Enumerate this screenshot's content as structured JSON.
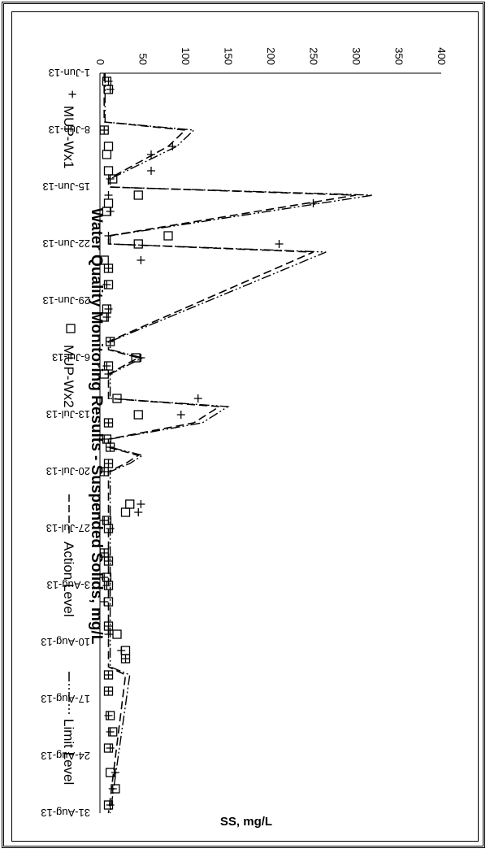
{
  "chart_data": {
    "type": "line",
    "title": "Water Quality Monitoring Results - Suspended Solids, mg/L",
    "ylabel": "SS, mg/L",
    "xlabel": "",
    "ylim": [
      0,
      400
    ],
    "yticks": [
      0,
      50,
      100,
      150,
      200,
      250,
      300,
      350,
      400
    ],
    "xlim": [
      "2013-06-01",
      "2013-08-31"
    ],
    "xticks": [
      "1-Jun-13",
      "8-Jun-13",
      "15-Jun-13",
      "22-Jun-13",
      "29-Jun-13",
      "6-Jul-13",
      "13-Jul-13",
      "20-Jul-13",
      "27-Jul-13",
      "3-Aug-13",
      "10-Aug-13",
      "17-Aug-13",
      "24-Aug-13",
      "31-Aug-13"
    ],
    "grid": false,
    "legend_position": "top",
    "series": [
      {
        "name": "MUP-Wx1",
        "marker": "plus",
        "x": [
          "2013-06-02",
          "2013-06-03",
          "2013-06-08",
          "2013-06-10",
          "2013-06-11",
          "2013-06-13",
          "2013-06-14",
          "2013-06-16",
          "2013-06-17",
          "2013-06-18",
          "2013-06-21",
          "2013-06-22",
          "2013-06-24",
          "2013-06-25",
          "2013-06-27",
          "2013-06-30",
          "2013-07-01",
          "2013-07-04",
          "2013-07-06",
          "2013-07-07",
          "2013-07-08",
          "2013-07-11",
          "2013-07-13",
          "2013-07-14",
          "2013-07-16",
          "2013-07-17",
          "2013-07-19",
          "2013-07-20",
          "2013-07-24",
          "2013-07-25",
          "2013-07-26",
          "2013-07-27",
          "2013-07-30",
          "2013-07-31",
          "2013-08-02",
          "2013-08-03",
          "2013-08-05",
          "2013-08-08",
          "2013-08-09",
          "2013-08-11",
          "2013-08-12",
          "2013-08-14",
          "2013-08-16",
          "2013-08-19",
          "2013-08-21",
          "2013-08-23",
          "2013-08-26",
          "2013-08-28",
          "2013-08-30"
        ],
        "values": [
          10,
          12,
          5,
          85,
          60,
          60,
          12,
          10,
          250,
          12,
          10,
          210,
          48,
          10,
          8,
          10,
          8,
          12,
          48,
          8,
          10,
          115,
          95,
          10,
          5,
          12,
          10,
          5,
          48,
          45,
          5,
          12,
          5,
          10,
          5,
          8,
          5,
          10,
          10,
          25,
          30,
          10,
          10,
          10,
          12,
          12,
          18,
          15,
          12
        ]
      },
      {
        "name": "MUP-Wx2",
        "marker": "square",
        "x": [
          "2013-06-02",
          "2013-06-03",
          "2013-06-08",
          "2013-06-10",
          "2013-06-11",
          "2013-06-13",
          "2013-06-14",
          "2013-06-16",
          "2013-06-17",
          "2013-06-18",
          "2013-06-21",
          "2013-06-22",
          "2013-06-24",
          "2013-06-25",
          "2013-06-27",
          "2013-06-30",
          "2013-07-01",
          "2013-07-04",
          "2013-07-06",
          "2013-07-07",
          "2013-07-08",
          "2013-07-11",
          "2013-07-13",
          "2013-07-14",
          "2013-07-16",
          "2013-07-17",
          "2013-07-19",
          "2013-07-20",
          "2013-07-24",
          "2013-07-25",
          "2013-07-26",
          "2013-07-27",
          "2013-07-30",
          "2013-07-31",
          "2013-08-02",
          "2013-08-03",
          "2013-08-05",
          "2013-08-08",
          "2013-08-09",
          "2013-08-11",
          "2013-08-12",
          "2013-08-14",
          "2013-08-16",
          "2013-08-19",
          "2013-08-21",
          "2013-08-23",
          "2013-08-26",
          "2013-08-28",
          "2013-08-30"
        ],
        "values": [
          8,
          10,
          5,
          10,
          8,
          10,
          15,
          45,
          10,
          8,
          80,
          45,
          5,
          10,
          10,
          8,
          5,
          12,
          42,
          10,
          5,
          20,
          45,
          10,
          8,
          12,
          10,
          5,
          35,
          30,
          8,
          10,
          5,
          10,
          8,
          10,
          10,
          10,
          20,
          30,
          30,
          10,
          10,
          12,
          15,
          10,
          12,
          18,
          10
        ]
      },
      {
        "name": "Action Level",
        "style": "dashed",
        "x": [
          "2013-06-01",
          "2013-06-07",
          "2013-06-08",
          "2013-06-10",
          "2013-06-14",
          "2013-06-15",
          "2013-06-16",
          "2013-06-21",
          "2013-06-22",
          "2013-06-23",
          "2013-07-04",
          "2013-07-05",
          "2013-07-06",
          "2013-07-08",
          "2013-07-11",
          "2013-07-12",
          "2013-07-14",
          "2013-07-16",
          "2013-07-17",
          "2013-07-18",
          "2013-07-19",
          "2013-07-20",
          "2013-08-13",
          "2013-08-14",
          "2013-08-31"
        ],
        "values": [
          5,
          5,
          100,
          80,
          10,
          10,
          300,
          10,
          10,
          250,
          10,
          10,
          45,
          10,
          10,
          140,
          110,
          10,
          10,
          45,
          30,
          10,
          10,
          30,
          10
        ]
      },
      {
        "name": "Limit Level",
        "style": "dash-dot-dot",
        "x": [
          "2013-06-01",
          "2013-06-07",
          "2013-06-08",
          "2013-06-10",
          "2013-06-14",
          "2013-06-15",
          "2013-06-16",
          "2013-06-21",
          "2013-06-22",
          "2013-06-23",
          "2013-07-04",
          "2013-07-05",
          "2013-07-06",
          "2013-07-08",
          "2013-07-11",
          "2013-07-12",
          "2013-07-14",
          "2013-07-16",
          "2013-07-17",
          "2013-07-18",
          "2013-07-19",
          "2013-07-20",
          "2013-08-13",
          "2013-08-14",
          "2013-08-31"
        ],
        "values": [
          6,
          6,
          110,
          90,
          12,
          12,
          320,
          12,
          12,
          265,
          12,
          12,
          50,
          12,
          12,
          150,
          120,
          12,
          12,
          50,
          35,
          12,
          12,
          35,
          12
        ]
      }
    ]
  }
}
